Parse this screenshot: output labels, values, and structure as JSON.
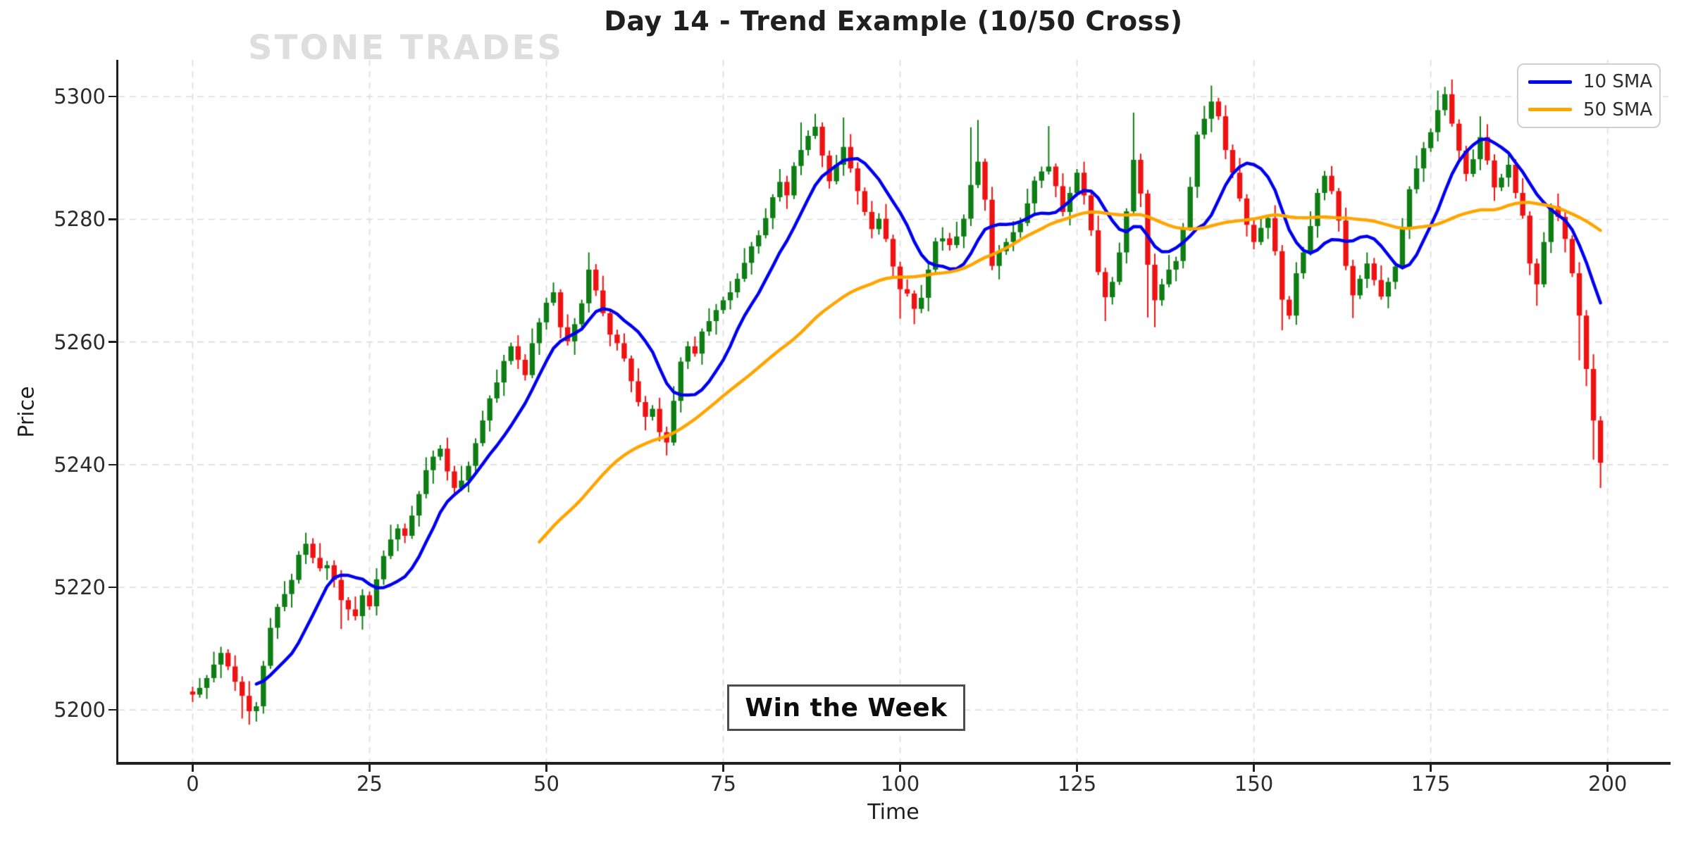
{
  "title": "Day 14 - Trend Example (10/50 Cross)",
  "watermark": {
    "text": "STONE TRADES",
    "color": "#dedede"
  },
  "annotation": {
    "text": "Win the Week"
  },
  "axes": {
    "x_label": "Time",
    "y_label": "Price",
    "x_ticks": [
      0,
      25,
      50,
      75,
      100,
      125,
      150,
      175,
      200
    ],
    "y_ticks": [
      5200,
      5220,
      5240,
      5260,
      5280,
      5300
    ],
    "xlim": [
      -10.5,
      208.6
    ],
    "ylim": [
      5191.3,
      5306.0
    ],
    "grid": true
  },
  "legend": {
    "position": "top-right"
  },
  "colors": {
    "up": "#0e7d14",
    "down": "#ee1212",
    "sma10": "#0000ee",
    "sma50": "#ffa500",
    "grid": "#dcdcdc",
    "spine": "#202020",
    "tick_text": "#2b2b2b"
  },
  "chart_data": {
    "type": "candlestick",
    "title": "Day 14 - Trend Example (10/50 Cross)",
    "xlabel": "Time",
    "ylabel": "Price",
    "xlim": [
      -10.5,
      208.6
    ],
    "ylim": [
      5191.3,
      5306.0
    ],
    "x_start": 0,
    "x_step": 1,
    "first_open": 5203.0,
    "closes": [
      5202.5,
      5203.6,
      5205.2,
      5207.4,
      5209.3,
      5207.1,
      5204.6,
      5202.3,
      5199.8,
      5200.6,
      5207.2,
      5213.4,
      5216.8,
      5218.9,
      5221.2,
      5225.3,
      5227.1,
      5224.8,
      5223.1,
      5223.6,
      5221.2,
      5217.9,
      5216.4,
      5215.3,
      5218.7,
      5216.9,
      5221.3,
      5225.1,
      5227.8,
      5229.6,
      5228.4,
      5231.7,
      5235.2,
      5239.1,
      5241.3,
      5242.6,
      5238.9,
      5236.2,
      5237.4,
      5239.8,
      5243.5,
      5247.2,
      5250.8,
      5253.4,
      5256.9,
      5259.3,
      5257.1,
      5254.6,
      5259.8,
      5263.2,
      5266.4,
      5268.1,
      5262.4,
      5260.1,
      5262.9,
      5266.3,
      5271.8,
      5268.4,
      5264.7,
      5261.2,
      5259.8,
      5257.3,
      5253.6,
      5250.2,
      5247.8,
      5249.1,
      5245.3,
      5243.6,
      5250.4,
      5256.8,
      5259.3,
      5258.1,
      5261.7,
      5263.4,
      5265.2,
      5266.8,
      5268.1,
      5270.3,
      5272.9,
      5275.6,
      5277.4,
      5280.2,
      5283.6,
      5286.1,
      5283.9,
      5288.7,
      5291.3,
      5293.6,
      5295.1,
      5290.4,
      5286.2,
      5288.9,
      5291.8,
      5288.3,
      5284.6,
      5281.2,
      5278.4,
      5280.1,
      5276.8,
      5272.3,
      5268.6,
      5267.9,
      5265.4,
      5267.2,
      5271.8,
      5276.4,
      5276.9,
      5275.8,
      5277.2,
      5280.1,
      5285.6,
      5289.4,
      5283.2,
      5272.4,
      5274.8,
      5276.3,
      5277.9,
      5279.4,
      5282.6,
      5286.3,
      5287.8,
      5288.6,
      5285.4,
      5281.2,
      5284.3,
      5287.6,
      5283.9,
      5278.2,
      5271.4,
      5267.3,
      5269.8,
      5274.6,
      5281.3,
      5289.7,
      5284.2,
      5272.6,
      5266.8,
      5269.4,
      5271.8,
      5273.2,
      5278.6,
      5285.3,
      5293.8,
      5296.4,
      5299.2,
      5296.8,
      5291.3,
      5287.6,
      5283.4,
      5279.1,
      5276.3,
      5278.6,
      5280.2,
      5274.8,
      5266.9,
      5264.3,
      5271.2,
      5274.6,
      5278.9,
      5284.3,
      5287.1,
      5284.6,
      5279.8,
      5272.4,
      5267.6,
      5270.3,
      5272.8,
      5270.1,
      5267.4,
      5269.8,
      5272.3,
      5278.6,
      5284.9,
      5288.3,
      5291.6,
      5294.2,
      5297.8,
      5300.4,
      5295.6,
      5291.2,
      5287.4,
      5289.8,
      5293.4,
      5289.6,
      5285.2,
      5286.8,
      5288.9,
      5284.3,
      5280.6,
      5272.8,
      5269.4,
      5276.3,
      5282.1,
      5280.4,
      5276.8,
      5271.2,
      5264.3,
      5255.6,
      5247.2,
      5240.3
    ],
    "wick_high_pattern": [
      0.8,
      1.6,
      0.5,
      2.1,
      1.0,
      0.6,
      1.8,
      0.9,
      2.4,
      0.7
    ],
    "wick_low_pattern": [
      1.2,
      0.5,
      1.8,
      0.7,
      2.2,
      0.6,
      1.5,
      0.9,
      0.5,
      1.9
    ],
    "wick_overrides": {
      "high": {
        "56": 5274.6,
        "86": 5295.8,
        "88": 5297.2,
        "92": 5296.6,
        "110": 5295.0,
        "111": 5296.2,
        "121": 5295.2,
        "133": 5297.4,
        "144": 5301.8,
        "176": 5301.0,
        "177": 5301.6,
        "182": 5296.8
      },
      "low": {
        "7": 5198.6,
        "8": 5197.6,
        "9": 5198.1,
        "21": 5213.2,
        "67": 5241.5,
        "100": 5263.8,
        "102": 5262.9,
        "129": 5263.4,
        "135": 5264.0,
        "136": 5262.4,
        "154": 5261.9,
        "164": 5263.9,
        "190": 5265.9,
        "196": 5257.0,
        "197": 5252.8,
        "198": 5240.8,
        "199": 5236.2
      }
    },
    "series": [
      {
        "name": "10 SMA",
        "window": 10,
        "color": "#0000ee"
      },
      {
        "name": "50 SMA",
        "window": 50,
        "color": "#ffa500"
      }
    ]
  }
}
